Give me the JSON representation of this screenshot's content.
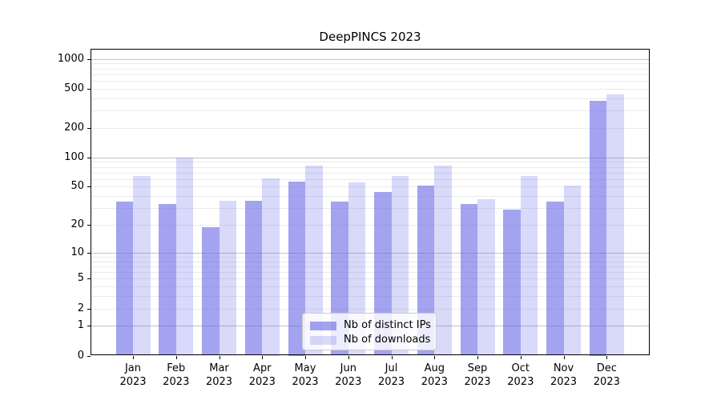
{
  "chart_data": {
    "type": "bar",
    "title": "DeepPINCS 2023",
    "x_categories": [
      "Jan 2023",
      "Feb 2023",
      "Mar 2023",
      "Apr 2023",
      "May 2023",
      "Jun 2023",
      "Jul 2023",
      "Aug 2023",
      "Sep 2023",
      "Oct 2023",
      "Nov 2023",
      "Dec 2023"
    ],
    "x_tick_line1": [
      "Jan",
      "Feb",
      "Mar",
      "Apr",
      "May",
      "Jun",
      "Jul",
      "Aug",
      "Sep",
      "Oct",
      "Nov",
      "Dec"
    ],
    "x_tick_line2": "2023",
    "series": [
      {
        "name": "Nb of distinct IPs",
        "color": "rgba(102,102,230,0.60)",
        "color_on_white": "#a3a3f0",
        "values": [
          35,
          33,
          19,
          36,
          57,
          35,
          44,
          51,
          33,
          29,
          35,
          380
        ]
      },
      {
        "name": "Nb of downloads",
        "color": "rgba(102,102,230,0.25)",
        "color_on_white": "#d9d9f8",
        "values": [
          65,
          100,
          36,
          61,
          83,
          55,
          65,
          83,
          37,
          64,
          51,
          440
        ]
      }
    ],
    "yscale": "log10(1+x)",
    "ylim": [
      0,
      1300
    ],
    "y_ticks": [
      0,
      1,
      2,
      5,
      10,
      20,
      50,
      100,
      200,
      500,
      1000
    ],
    "y_tick_labels": [
      "0",
      "1",
      "2",
      "5",
      "10",
      "20",
      "50",
      "100",
      "200",
      "500",
      "1000"
    ],
    "y_major_gridlines": [
      1,
      10,
      100,
      1000
    ],
    "y_minor_gridlines": [
      2,
      3,
      4,
      5,
      6,
      7,
      8,
      9,
      20,
      30,
      40,
      50,
      60,
      70,
      80,
      90,
      200,
      300,
      400,
      500,
      600,
      700,
      800,
      900
    ],
    "grid": true,
    "legend": {
      "items": [
        "Nb of distinct IPs",
        "Nb of downloads"
      ],
      "location": "lower center"
    },
    "colors": {
      "major_grid": "#c2c2c2",
      "minor_grid": "#ebebeb",
      "axis": "#000000",
      "background": "#ffffff"
    }
  }
}
